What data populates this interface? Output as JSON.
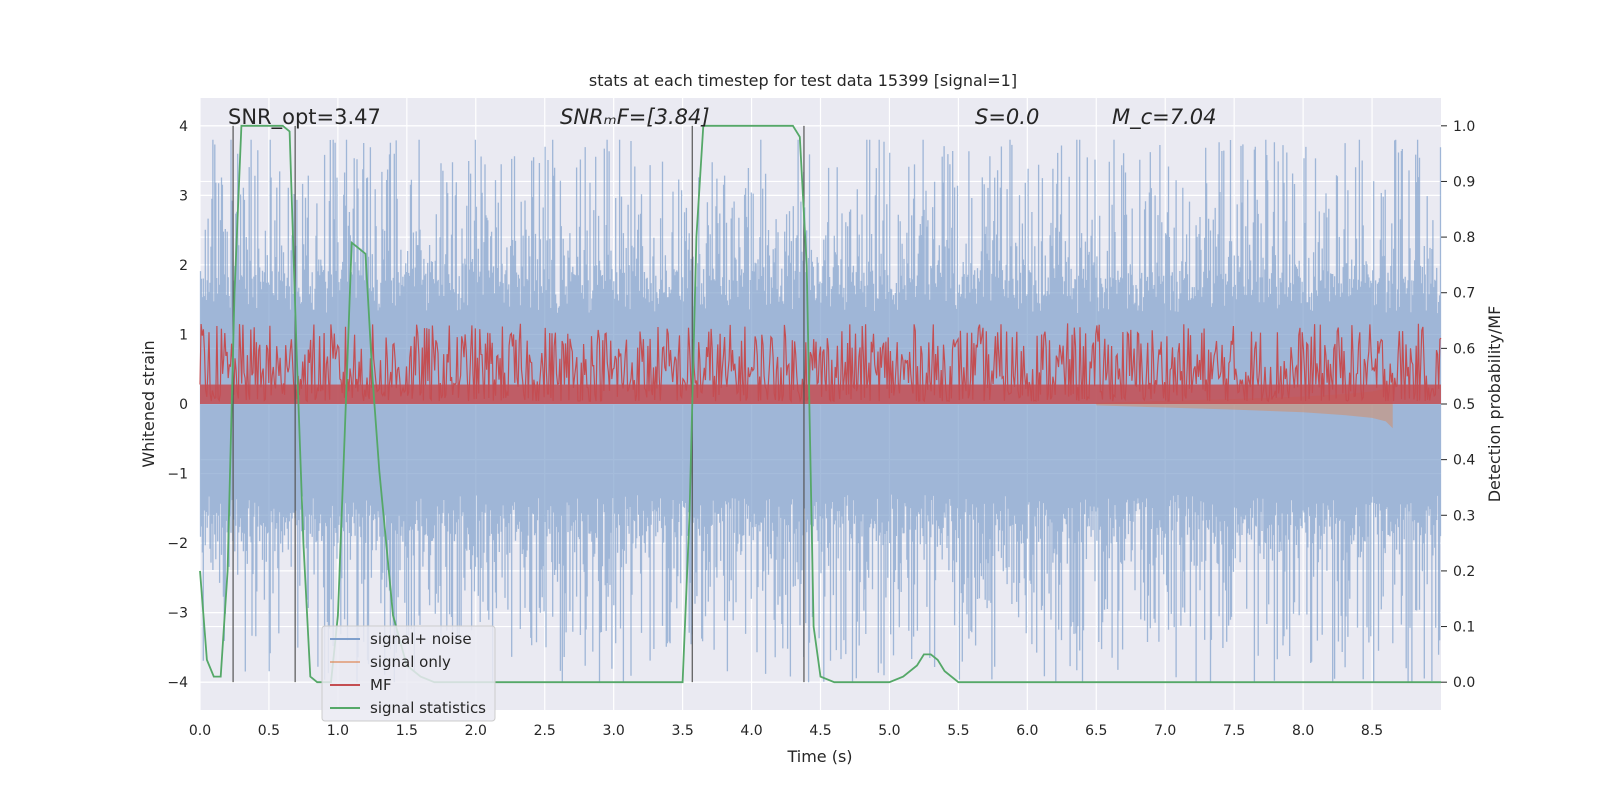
{
  "chart_data": {
    "type": "line",
    "title": "stats at each timestep for test data 15399 [signal=1]",
    "xlabel": "Time (s)",
    "ylabel": "Whitened strain",
    "y2label": "Detection probability/MF",
    "xlim": [
      0,
      9.0
    ],
    "ylim": [
      -4.4,
      4.4
    ],
    "y2lim": [
      -0.05,
      1.05
    ],
    "grid": true,
    "legend_position": "lower-left",
    "x_ticks": [
      "0.0",
      "0.5",
      "1.0",
      "1.5",
      "2.0",
      "2.5",
      "3.0",
      "3.5",
      "4.0",
      "4.5",
      "5.0",
      "5.5",
      "6.0",
      "6.5",
      "7.0",
      "7.5",
      "8.0",
      "8.5"
    ],
    "y_ticks": [
      "4",
      "3",
      "2",
      "1",
      "0",
      "−1",
      "−2",
      "−3",
      "−4"
    ],
    "y2_ticks": [
      "1.0",
      "0.9",
      "0.8",
      "0.7",
      "0.6",
      "0.5",
      "0.4",
      "0.3",
      "0.2",
      "0.1",
      "0.0"
    ],
    "annotations": [
      {
        "id": "snr-opt",
        "label": "SNR_opt=3.47"
      },
      {
        "id": "snr-mf",
        "label": "SNRₘF=[3.84]"
      },
      {
        "id": "s-val",
        "label": "S=0.0"
      },
      {
        "id": "mc-val",
        "label": "M_c=7.04"
      }
    ],
    "vlines_x": [
      0.24,
      0.69,
      3.57,
      4.38
    ],
    "series": [
      {
        "name": "signal+ noise",
        "color": "#7f9fcc",
        "axis": "left",
        "style": "noise band",
        "amplitude_range": [
          -4.0,
          3.8
        ]
      },
      {
        "name": "signal only",
        "color": "#dd8452",
        "axis": "left",
        "style": "chirp ending near 8.65 s",
        "x": [
          6.5,
          7.0,
          7.5,
          8.0,
          8.3,
          8.5,
          8.6,
          8.65
        ],
        "y": [
          0.02,
          0.05,
          0.08,
          0.12,
          0.16,
          0.2,
          0.25,
          0.35
        ]
      },
      {
        "name": "MF",
        "color": "#c44e52",
        "axis": "right",
        "style": "noisy band around 0.55",
        "band": [
          0.5,
          0.62
        ]
      },
      {
        "name": "signal statistics",
        "color": "#55a868",
        "axis": "right",
        "x": [
          0.0,
          0.05,
          0.1,
          0.15,
          0.2,
          0.25,
          0.3,
          0.35,
          0.4,
          0.5,
          0.6,
          0.65,
          0.7,
          0.75,
          0.8,
          0.85,
          0.9,
          0.95,
          1.0,
          1.05,
          1.1,
          1.15,
          1.2,
          1.25,
          1.3,
          1.35,
          1.4,
          1.5,
          1.6,
          1.7,
          1.8,
          2.0,
          2.5,
          2.8,
          3.0,
          3.2,
          3.4,
          3.5,
          3.55,
          3.6,
          3.65,
          3.7,
          3.8,
          4.0,
          4.2,
          4.3,
          4.35,
          4.4,
          4.45,
          4.5,
          4.6,
          4.8,
          5.0,
          5.1,
          5.2,
          5.25,
          5.3,
          5.35,
          5.4,
          5.5,
          5.6,
          6.0,
          7.0,
          8.0,
          9.0
        ],
        "y": [
          0.2,
          0.04,
          0.01,
          0.01,
          0.2,
          0.7,
          1.0,
          1.0,
          1.0,
          1.0,
          1.0,
          0.99,
          0.6,
          0.25,
          0.01,
          0.0,
          0.0,
          0.0,
          0.12,
          0.45,
          0.79,
          0.78,
          0.77,
          0.55,
          0.38,
          0.25,
          0.12,
          0.03,
          0.01,
          0.0,
          0.0,
          0.0,
          0.0,
          0.0,
          0.0,
          0.0,
          0.0,
          0.0,
          0.3,
          0.8,
          1.0,
          1.0,
          1.0,
          1.0,
          1.0,
          1.0,
          0.98,
          0.75,
          0.1,
          0.01,
          0.0,
          0.0,
          0.0,
          0.01,
          0.03,
          0.05,
          0.05,
          0.04,
          0.02,
          0.0,
          0.0,
          0.0,
          0.0,
          0.0,
          0.0
        ]
      }
    ]
  }
}
